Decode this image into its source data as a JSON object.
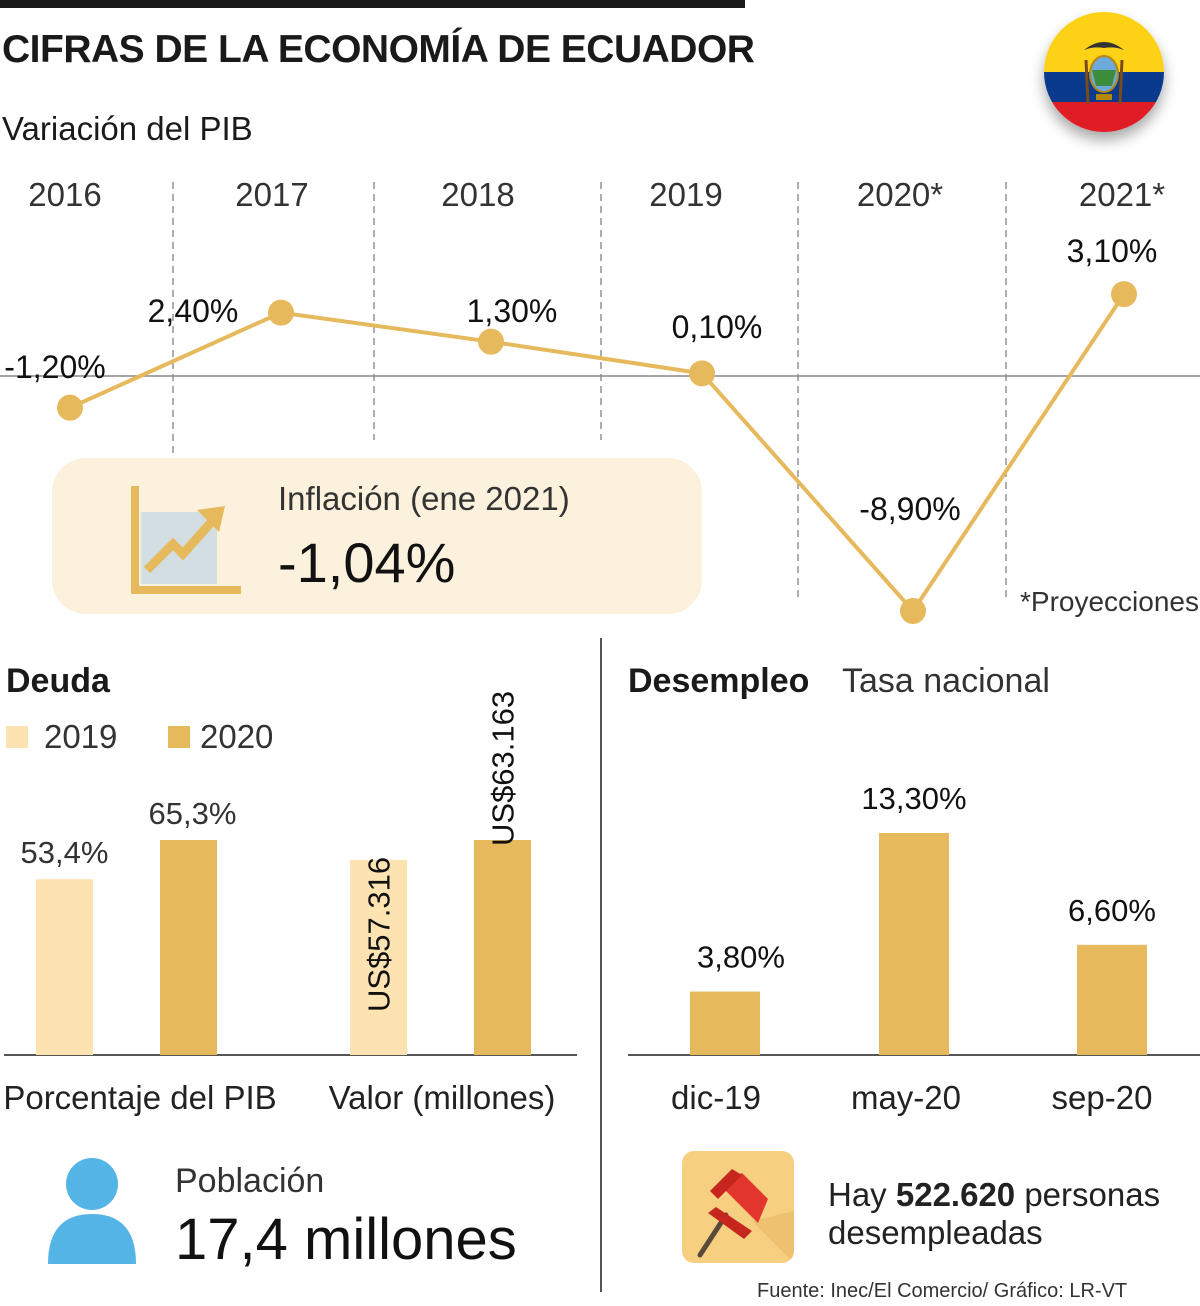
{
  "title": "CIFRAS DE LA ECONOMÍA DE ECUADOR",
  "pib": {
    "subtitle": "Variación del PIB",
    "footnote": "*Proyecciones"
  },
  "inflation": {
    "label": "Inflación (ene 2021)",
    "value": "-1,04%",
    "icon": "trend-up-chart-icon"
  },
  "deuda": {
    "title": "Deuda",
    "legend": [
      "2019",
      "2020"
    ]
  },
  "desempleo": {
    "title": "Desempleo",
    "subtitle": "Tasa nacional",
    "text_prefix": "Hay ",
    "text_bold": "522.620",
    "text_suffix": " personas desempleadas",
    "icon": "pushpin-icon"
  },
  "poblacion": {
    "label": "Población",
    "value": "17,4 millones",
    "icon": "person-icon"
  },
  "source": "Fuente: Inec/El Comercio/ Gráfico: LR-VT",
  "flag_icon": "ecuador-flag-icon",
  "colors": {
    "gold": "#E6B95C",
    "light": "#FDE3B2",
    "cream": "#FBF1DC",
    "person": "#55B4E6",
    "pin_bg": "#F6CF80",
    "pin": "#E2352E"
  },
  "chart_data": [
    {
      "type": "line",
      "x": [
        "2016",
        "2017",
        "2018",
        "2019",
        "2020*",
        "2021*"
      ],
      "values": [
        -1.2,
        2.4,
        1.3,
        0.1,
        -8.9,
        3.1
      ],
      "labels": [
        "-1,20%",
        "2,40%",
        "1,30%",
        "0,10%",
        "-8,90%",
        "3,10%"
      ],
      "title": "Variación del PIB",
      "ylim": [
        -8.9,
        3.1
      ]
    },
    {
      "type": "bar",
      "title": "Deuda",
      "groups": [
        {
          "category": "Porcentaje del PIB",
          "bars": [
            {
              "series": "2019",
              "value": 53.4,
              "label": "53,4%"
            },
            {
              "series": "2020",
              "value": 65.3,
              "label": "65,3%"
            }
          ]
        },
        {
          "category": "Valor (millones)",
          "bars": [
            {
              "series": "2019",
              "value": 57316,
              "label": "US$57.316"
            },
            {
              "series": "2020",
              "value": 63163,
              "label": "US$63.163"
            }
          ]
        }
      ]
    },
    {
      "type": "bar",
      "title": "Desempleo",
      "subtitle": "Tasa nacional",
      "categories": [
        "dic-19",
        "may-20",
        "sep-20"
      ],
      "values": [
        3.8,
        13.3,
        6.6
      ],
      "labels": [
        "3,80%",
        "13,30%",
        "6,60%"
      ]
    }
  ]
}
